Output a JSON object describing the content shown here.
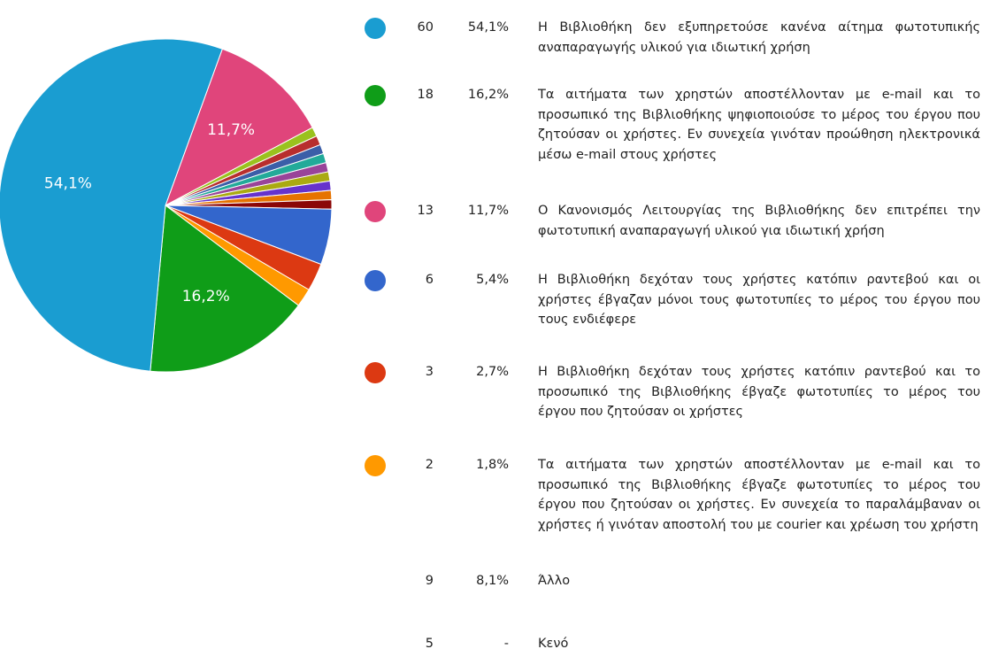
{
  "chart_data": {
    "type": "pie",
    "categories": [
      "Η Βιβλιοθήκη δεν εξυπηρετούσε κανένα αίτημα φωτοτυπικής αναπαραγωγής υλικού για ιδιωτική χρήση",
      "Τα αιτήματα των χρηστών αποστέλλονταν με e-mail και το προσωπικό της Βιβλιοθήκης ψηφιοποιούσε το μέρος του έργου που ζητούσαν οι χρήστες. Εν συνεχεία γινόταν προώθηση ηλεκτρονικά μέσω e-mail στους χρήστες",
      "Ο Κανονισμός Λειτουργίας της Βιβλιοθήκης δεν επιτρέπει την φωτοτυπική αναπαραγωγή υλικού για ιδιωτική χρήση",
      "Η Βιβλιοθήκη δεχόταν τους χρήστες κατόπιν ραντεβού και οι χρήστες έβγαζαν μόνοι τους φωτοτυπίες το μέρος του έργου που τους ενδιέφερε",
      "Η Βιβλιοθήκη δεχόταν τους χρήστες κατόπιν ραντεβού και το προσωπικό της Βιβλιοθήκης έβγαζε φωτοτυπίες το μέρος του έργου που ζητούσαν οι χρήστες",
      "Τα αιτήματα των χρηστών αποστέλλονταν με e-mail και το προσωπικό της Βιβλιοθήκης έβγαζε φωτοτυπίες το μέρος του έργου που ζητούσαν οι χρήστες. Εν συνεχεία το παραλάμβαναν οι χρήστες ή γινόταν αποστολή του με courier και χρέωση του χρήστη",
      "Άλλο"
    ],
    "counts": [
      60,
      18,
      13,
      6,
      3,
      2,
      9
    ],
    "values": [
      54.1,
      16.2,
      11.7,
      5.4,
      2.7,
      1.8,
      8.1
    ],
    "value_labels": [
      "54,1%",
      "16,2%",
      "11,7%",
      "5,4%",
      "2,7%",
      "1,8%",
      "8,1%"
    ],
    "colors": [
      "#1a9dd1",
      "#0f9d18",
      "#e0457b",
      "#3366cc",
      "#dc3912",
      "#ff9900",
      [
        "#9ac21e",
        "#b82e2e",
        "#3b5ea8",
        "#22aa99",
        "#994499",
        "#aaaa11",
        "#6633cc",
        "#e67300",
        "#8b0707"
      ]
    ],
    "blank": {
      "label": "Κενό",
      "count": 5,
      "value_label": "-"
    }
  }
}
